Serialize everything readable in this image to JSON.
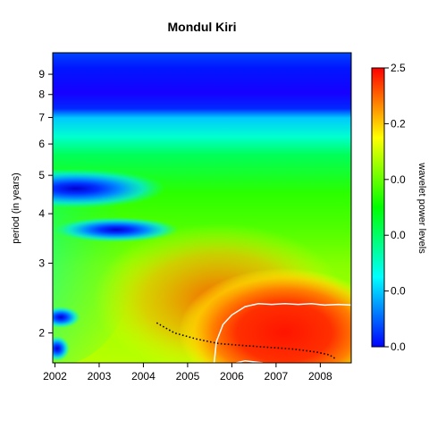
{
  "chart_data": {
    "type": "heatmap",
    "title": "Mondul Kiri",
    "xlabel": "",
    "ylabel": "period (in years)",
    "x_ticks": [
      "2002",
      "2003",
      "2004",
      "2005",
      "2006",
      "2007",
      "2008"
    ],
    "x_tick_values": [
      2002,
      2003,
      2004,
      2005,
      2006,
      2007,
      2008
    ],
    "xlim": [
      2001.95,
      2008.7
    ],
    "y_scale": "log",
    "y_ticks": [
      "2",
      "3",
      "4",
      "5",
      "6",
      "7",
      "8",
      "9"
    ],
    "y_tick_values": [
      2,
      3,
      4,
      5,
      6,
      7,
      8,
      9
    ],
    "ylim": [
      1.68,
      10.2
    ],
    "colorbar": {
      "label": "wavelet power levels",
      "tick_labels": [
        "0.0",
        "0.0",
        "0.0",
        "0.0",
        "0.2",
        "2.5"
      ],
      "colors": [
        "#0000ff",
        "#00ffff",
        "#00ff00",
        "#ffff00",
        "#ff0000"
      ]
    },
    "ridge_line": {
      "x": [
        2004.3,
        2004.7,
        2005.2,
        2005.7,
        2006.2,
        2006.8,
        2007.4,
        2007.9,
        2008.2,
        2008.35
      ],
      "y": [
        2.12,
        2.0,
        1.93,
        1.88,
        1.86,
        1.84,
        1.82,
        1.79,
        1.76,
        1.72
      ]
    },
    "significance_contour": {
      "x": [
        2005.6,
        2005.65,
        2005.8,
        2006.0,
        2006.3,
        2006.6,
        2006.9,
        2007.2,
        2007.5,
        2007.8,
        2008.1,
        2008.4,
        2008.7
      ],
      "y": [
        1.68,
        1.9,
        2.1,
        2.22,
        2.33,
        2.37,
        2.36,
        2.37,
        2.36,
        2.37,
        2.35,
        2.36,
        2.35
      ]
    },
    "significance_contour_bottom": {
      "x": [
        2006.1,
        2006.3,
        2006.5,
        2006.7
      ],
      "y": [
        1.68,
        1.7,
        1.69,
        1.68
      ]
    }
  }
}
